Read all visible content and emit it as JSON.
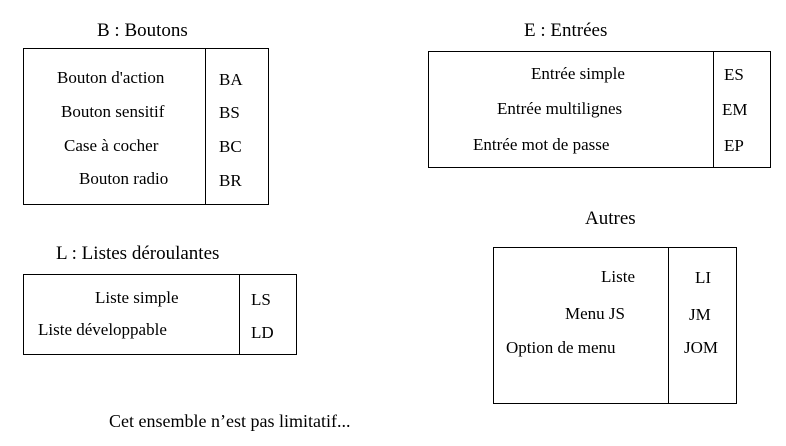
{
  "groups": {
    "boutons": {
      "title": "B : Boutons",
      "items": [
        {
          "label": "Bouton d'action",
          "code": "BA"
        },
        {
          "label": "Bouton sensitif",
          "code": "BS"
        },
        {
          "label": "Case à cocher",
          "code": "BC"
        },
        {
          "label": "Bouton radio",
          "code": "BR"
        }
      ]
    },
    "entrees": {
      "title": "E : Entrées",
      "items": [
        {
          "label": "Entrée simple",
          "code": "ES"
        },
        {
          "label": "Entrée multilignes",
          "code": "EM"
        },
        {
          "label": "Entrée mot de passe",
          "code": "EP"
        }
      ]
    },
    "listes": {
      "title": "L : Listes déroulantes",
      "items": [
        {
          "label": "Liste simple",
          "code": "LS"
        },
        {
          "label": "Liste développable",
          "code": "LD"
        }
      ]
    },
    "autres": {
      "title": "Autres",
      "items": [
        {
          "label": "Liste",
          "code": "LI"
        },
        {
          "label": "Menu JS",
          "code": "JM"
        },
        {
          "label": "Option de menu",
          "code": "JOM"
        }
      ]
    }
  },
  "footer": "Cet ensemble n’est pas limitatif..."
}
